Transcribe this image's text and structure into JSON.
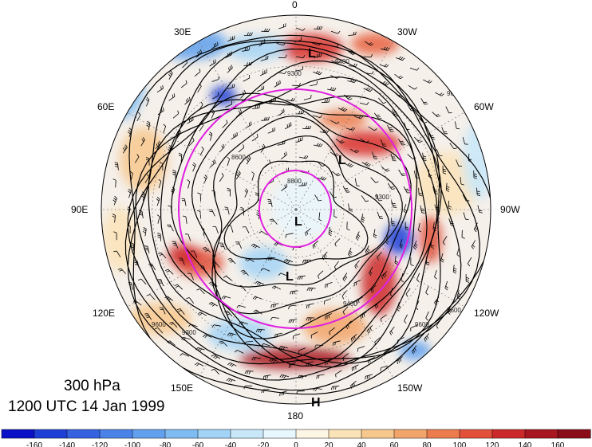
{
  "title": {
    "level": "300 hPa",
    "time": "1200 UTC 14 Jan 1999"
  },
  "longitude_labels": [
    {
      "text": "0"
    },
    {
      "text": "30W"
    },
    {
      "text": "60W"
    },
    {
      "text": "90W"
    },
    {
      "text": "120W"
    },
    {
      "text": "150W"
    },
    {
      "text": "180"
    },
    {
      "text": "150E"
    },
    {
      "text": "120E"
    },
    {
      "text": "90E"
    },
    {
      "text": "60E"
    },
    {
      "text": "30E"
    }
  ],
  "pressure_centers": [
    "L",
    "L",
    "L",
    "L",
    "H"
  ],
  "contour_labels": [
    "9600",
    "9300",
    "9400",
    "8800",
    "9300",
    "9400",
    "9600",
    "9300",
    "9600",
    "9600",
    "8600",
    "9600"
  ],
  "colorbar": {
    "ticks": [
      "-160",
      "-140",
      "-120",
      "-100",
      "-80",
      "-60",
      "-40",
      "-20",
      "0",
      "20",
      "40",
      "60",
      "80",
      "100",
      "120",
      "140",
      "160"
    ],
    "colors": [
      "#0a10c8",
      "#1e3fd6",
      "#3562e0",
      "#4a82e8",
      "#62a0ee",
      "#7fbcf2",
      "#a3d3f6",
      "#c8e8fa",
      "#e8f6fd",
      "#fdf6e4",
      "#fbe3b8",
      "#f7c88e",
      "#f2a56a",
      "#ec7b4e",
      "#e2503a",
      "#cc2a2a",
      "#a81620",
      "#8a0c18"
    ]
  },
  "colors": {
    "trough_line": "#e020e0",
    "contour_line": "#000000"
  }
}
